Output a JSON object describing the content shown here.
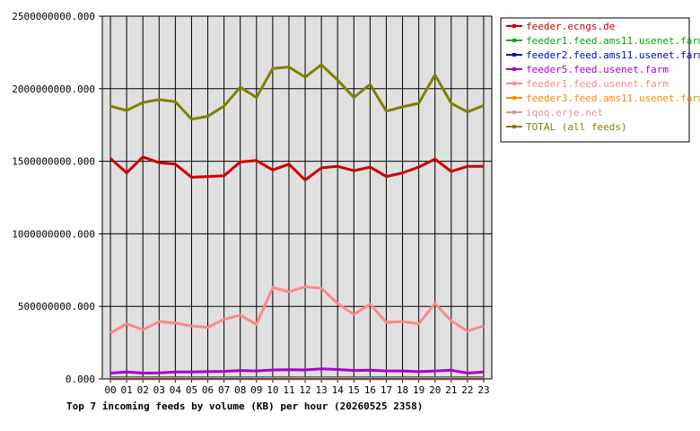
{
  "chart_data": {
    "type": "line",
    "title": "Top 7 incoming feeds by volume (KB) per hour (20260525 2358)",
    "xlabel": "",
    "ylabel": "",
    "ylim": [
      0,
      2500000000
    ],
    "grid": true,
    "legend_position": "top-right",
    "categories": [
      "00",
      "01",
      "02",
      "03",
      "04",
      "05",
      "06",
      "07",
      "08",
      "09",
      "10",
      "11",
      "12",
      "13",
      "14",
      "15",
      "16",
      "17",
      "18",
      "19",
      "20",
      "21",
      "22",
      "23"
    ],
    "y_ticks": [
      "0.000",
      "500000000.000",
      "1000000000.000",
      "1500000000.000",
      "2000000000.000",
      "2500000000.000"
    ],
    "series": [
      {
        "name": "feeder.ecngs.de",
        "color": "#cc0000",
        "values": [
          1520000000,
          1420000000,
          1530000000,
          1490000000,
          1480000000,
          1390000000,
          1395000000,
          1400000000,
          1495000000,
          1505000000,
          1440000000,
          1480000000,
          1370000000,
          1455000000,
          1465000000,
          1435000000,
          1460000000,
          1395000000,
          1420000000,
          1460000000,
          1515000000,
          1430000000,
          1465000000,
          1465000000
        ]
      },
      {
        "name": "feeder1.feed.ams11.usenet.farm",
        "color": "#00aa00",
        "values": [
          8000000,
          8000000,
          8000000,
          8000000,
          8000000,
          8000000,
          8000000,
          8000000,
          8000000,
          8000000,
          8000000,
          8000000,
          8000000,
          8000000,
          8000000,
          8000000,
          8000000,
          8000000,
          8000000,
          8000000,
          8000000,
          8000000,
          8000000,
          8000000
        ]
      },
      {
        "name": "feeder2.feed.ams11.usenet.farm",
        "color": "#0000cc",
        "values": [
          5000000,
          5000000,
          5000000,
          5000000,
          5000000,
          5000000,
          5000000,
          5000000,
          5000000,
          5000000,
          5000000,
          5000000,
          5000000,
          5000000,
          5000000,
          5000000,
          5000000,
          5000000,
          5000000,
          5000000,
          5000000,
          5000000,
          5000000,
          5000000
        ]
      },
      {
        "name": "feeder5.feed.usenet.farm",
        "color": "#aa00cc",
        "values": [
          40000000,
          48000000,
          40000000,
          42000000,
          48000000,
          48000000,
          50000000,
          52000000,
          58000000,
          55000000,
          62000000,
          63000000,
          62000000,
          70000000,
          65000000,
          58000000,
          60000000,
          55000000,
          55000000,
          50000000,
          55000000,
          60000000,
          40000000,
          48000000
        ]
      },
      {
        "name": "feeder1.feed.usenet.farm",
        "color": "#ff8888",
        "values": [
          315000000,
          380000000,
          340000000,
          395000000,
          385000000,
          365000000,
          355000000,
          410000000,
          440000000,
          375000000,
          630000000,
          600000000,
          635000000,
          625000000,
          520000000,
          445000000,
          515000000,
          390000000,
          395000000,
          380000000,
          520000000,
          400000000,
          330000000,
          365000000
        ]
      },
      {
        "name": "feeder3.feed.ams11.usenet.farm",
        "color": "#ff8800",
        "values": [
          2000000,
          2000000,
          2000000,
          2000000,
          2000000,
          2000000,
          2000000,
          2000000,
          2000000,
          2000000,
          2000000,
          2000000,
          2000000,
          2000000,
          2000000,
          2000000,
          2000000,
          2000000,
          2000000,
          2000000,
          2000000,
          2000000,
          2000000,
          2000000
        ]
      },
      {
        "name": "iqoq.erje.net",
        "color": "#dd9999",
        "values": [
          1000000,
          1000000,
          1000000,
          1000000,
          1000000,
          1000000,
          1000000,
          1000000,
          1000000,
          1000000,
          1000000,
          1000000,
          1000000,
          1000000,
          1000000,
          1000000,
          1000000,
          1000000,
          1000000,
          1000000,
          1000000,
          1000000,
          1000000,
          1000000
        ]
      },
      {
        "name": "TOTAL (all feeds)",
        "color": "#808000",
        "values": [
          1880000000,
          1850000000,
          1905000000,
          1925000000,
          1910000000,
          1790000000,
          1810000000,
          1880000000,
          2010000000,
          1940000000,
          2140000000,
          2150000000,
          2080000000,
          2165000000,
          2060000000,
          1940000000,
          2030000000,
          1845000000,
          1875000000,
          1900000000,
          2095000000,
          1900000000,
          1840000000,
          1885000000
        ]
      }
    ]
  }
}
